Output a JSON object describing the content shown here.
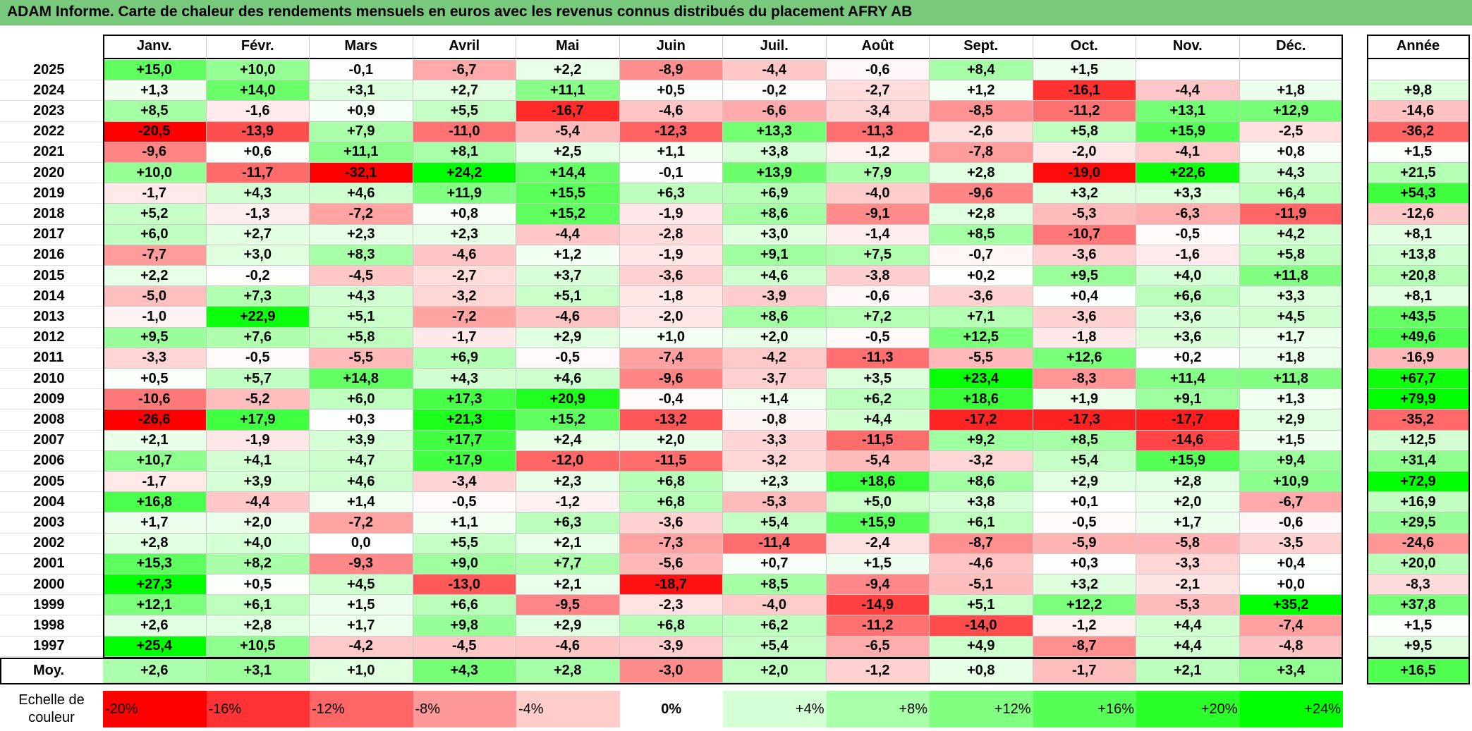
{
  "title": "ADAM Informe. Carte de chaleur des rendements mensuels en euros avec les revenus connus distribués du placement AFRY AB",
  "chart_data": {
    "type": "heatmap",
    "months": [
      "Janv.",
      "Févr.",
      "Mars",
      "Avril",
      "Mai",
      "Juin",
      "Juil.",
      "Août",
      "Sept.",
      "Oct.",
      "Nov.",
      "Déc."
    ],
    "year_header": "Année",
    "rows": [
      {
        "year": "2025",
        "values": [
          "+15,0",
          "+10,0",
          "-0,1",
          "-6,7",
          "+2,2",
          "-8,9",
          "-4,4",
          "-0,6",
          "+8,4",
          "+1,5",
          "",
          ""
        ],
        "annual": ""
      },
      {
        "year": "2024",
        "values": [
          "+1,3",
          "+14,0",
          "+3,1",
          "+2,7",
          "+11,1",
          "+0,5",
          "-0,2",
          "-2,7",
          "+1,2",
          "-16,1",
          "-4,4",
          "+1,8"
        ],
        "annual": "+9,8"
      },
      {
        "year": "2023",
        "values": [
          "+8,5",
          "-1,6",
          "+0,9",
          "+5,5",
          "-16,7",
          "-4,6",
          "-6,6",
          "-3,4",
          "-8,5",
          "-11,2",
          "+13,1",
          "+12,9"
        ],
        "annual": "-14,6"
      },
      {
        "year": "2022",
        "values": [
          "-20,5",
          "-13,9",
          "+7,9",
          "-11,0",
          "-5,4",
          "-12,3",
          "+13,3",
          "-11,3",
          "-2,6",
          "+5,8",
          "+15,9",
          "-2,5"
        ],
        "annual": "-36,2"
      },
      {
        "year": "2021",
        "values": [
          "-9,6",
          "+0,6",
          "+11,1",
          "+8,1",
          "+2,5",
          "+1,1",
          "+3,8",
          "-1,2",
          "-7,8",
          "-2,0",
          "-4,1",
          "+0,8"
        ],
        "annual": "+1,5"
      },
      {
        "year": "2020",
        "values": [
          "+10,0",
          "-11,7",
          "-32,1",
          "+24,2",
          "+14,4",
          "-0,1",
          "+13,9",
          "+7,9",
          "+2,8",
          "-19,0",
          "+22,6",
          "+4,3"
        ],
        "annual": "+21,5"
      },
      {
        "year": "2019",
        "values": [
          "-1,7",
          "+4,3",
          "+4,6",
          "+11,9",
          "+15,5",
          "+6,3",
          "+6,9",
          "-4,0",
          "-9,6",
          "+3,2",
          "+3,3",
          "+6,4"
        ],
        "annual": "+54,3"
      },
      {
        "year": "2018",
        "values": [
          "+5,2",
          "-1,3",
          "-7,2",
          "+0,8",
          "+15,2",
          "-1,9",
          "+8,6",
          "-9,1",
          "+2,8",
          "-5,3",
          "-6,3",
          "-11,9"
        ],
        "annual": "-12,6"
      },
      {
        "year": "2017",
        "values": [
          "+6,0",
          "+2,7",
          "+2,3",
          "+2,3",
          "-4,4",
          "-2,8",
          "+3,0",
          "-1,4",
          "+8,5",
          "-10,7",
          "-0,5",
          "+4,2"
        ],
        "annual": "+8,1"
      },
      {
        "year": "2016",
        "values": [
          "-7,7",
          "+3,0",
          "+8,3",
          "-4,6",
          "+1,2",
          "-1,9",
          "+9,1",
          "+7,5",
          "-0,7",
          "-3,6",
          "-1,6",
          "+5,8"
        ],
        "annual": "+13,8"
      },
      {
        "year": "2015",
        "values": [
          "+2,2",
          "-0,2",
          "-4,5",
          "-2,7",
          "+3,7",
          "-3,6",
          "+4,6",
          "-3,8",
          "+0,2",
          "+9,5",
          "+4,0",
          "+11,8"
        ],
        "annual": "+20,8"
      },
      {
        "year": "2014",
        "values": [
          "-5,0",
          "+7,3",
          "+4,3",
          "-3,2",
          "+5,1",
          "-1,8",
          "-3,9",
          "-0,6",
          "-3,6",
          "+0,4",
          "+6,6",
          "+3,3"
        ],
        "annual": "+8,1"
      },
      {
        "year": "2013",
        "values": [
          "-1,0",
          "+22,9",
          "+5,1",
          "-7,2",
          "-4,6",
          "-2,0",
          "+8,6",
          "+7,2",
          "+7,1",
          "-3,6",
          "+3,6",
          "+4,5"
        ],
        "annual": "+43,5"
      },
      {
        "year": "2012",
        "values": [
          "+9,5",
          "+7,6",
          "+5,8",
          "-1,7",
          "+2,9",
          "+1,0",
          "+2,0",
          "-0,5",
          "+12,5",
          "-1,8",
          "+3,6",
          "+1,7"
        ],
        "annual": "+49,6"
      },
      {
        "year": "2011",
        "values": [
          "-3,3",
          "-0,5",
          "-5,5",
          "+6,9",
          "-0,5",
          "-7,4",
          "-4,2",
          "-11,3",
          "-5,5",
          "+12,6",
          "+0,2",
          "+1,8"
        ],
        "annual": "-16,9"
      },
      {
        "year": "2010",
        "values": [
          "+0,5",
          "+5,7",
          "+14,8",
          "+4,3",
          "+4,6",
          "-9,6",
          "-3,7",
          "+3,5",
          "+23,4",
          "-8,3",
          "+11,4",
          "+11,8"
        ],
        "annual": "+67,7"
      },
      {
        "year": "2009",
        "values": [
          "-10,6",
          "-5,2",
          "+6,0",
          "+17,3",
          "+20,9",
          "-0,4",
          "+1,4",
          "+6,2",
          "+18,6",
          "+1,9",
          "+9,1",
          "+1,3"
        ],
        "annual": "+79,9"
      },
      {
        "year": "2008",
        "values": [
          "-26,6",
          "+17,9",
          "+0,3",
          "+21,3",
          "+15,2",
          "-13,2",
          "-0,8",
          "+4,4",
          "-17,2",
          "-17,3",
          "-17,7",
          "+2,9"
        ],
        "annual": "-35,2"
      },
      {
        "year": "2007",
        "values": [
          "+2,1",
          "-1,9",
          "+3,9",
          "+17,7",
          "+2,4",
          "+2,0",
          "-3,3",
          "-11,5",
          "+9,2",
          "+8,5",
          "-14,6",
          "+1,5"
        ],
        "annual": "+12,5"
      },
      {
        "year": "2006",
        "values": [
          "+10,7",
          "+4,1",
          "+4,7",
          "+17,9",
          "-12,0",
          "-11,5",
          "-3,2",
          "-5,4",
          "-3,2",
          "+5,4",
          "+15,9",
          "+9,4"
        ],
        "annual": "+31,4"
      },
      {
        "year": "2005",
        "values": [
          "-1,7",
          "+3,9",
          "+4,6",
          "-3,4",
          "+2,3",
          "+6,8",
          "+2,3",
          "+18,6",
          "+8,6",
          "+2,9",
          "+2,8",
          "+10,9"
        ],
        "annual": "+72,9"
      },
      {
        "year": "2004",
        "values": [
          "+16,8",
          "-4,4",
          "+1,4",
          "-0,5",
          "-1,2",
          "+6,8",
          "-5,3",
          "+5,0",
          "+3,8",
          "+0,1",
          "+2,0",
          "-6,7"
        ],
        "annual": "+16,9"
      },
      {
        "year": "2003",
        "values": [
          "+1,7",
          "+2,0",
          "-7,2",
          "+1,1",
          "+6,3",
          "-3,6",
          "+5,4",
          "+15,9",
          "+6,1",
          "-0,5",
          "+1,7",
          "-0,6"
        ],
        "annual": "+29,5"
      },
      {
        "year": "2002",
        "values": [
          "+2,8",
          "+4,0",
          "0,0",
          "+5,5",
          "+2,1",
          "-7,3",
          "-11,4",
          "-2,4",
          "-8,7",
          "-5,9",
          "-5,8",
          "-3,5"
        ],
        "annual": "-24,6"
      },
      {
        "year": "2001",
        "values": [
          "+15,3",
          "+8,2",
          "-9,3",
          "+9,0",
          "+7,7",
          "-5,6",
          "+0,7",
          "+1,5",
          "-4,6",
          "+0,3",
          "-3,3",
          "+0,4"
        ],
        "annual": "+20,0"
      },
      {
        "year": "2000",
        "values": [
          "+27,3",
          "+0,5",
          "+4,5",
          "-13,0",
          "+2,1",
          "-18,7",
          "+8,5",
          "-9,4",
          "-5,1",
          "+3,2",
          "-2,1",
          "+0,0"
        ],
        "annual": "-8,3"
      },
      {
        "year": "1999",
        "values": [
          "+12,1",
          "+6,1",
          "+1,5",
          "+6,6",
          "-9,5",
          "-2,3",
          "-4,0",
          "-14,9",
          "+5,1",
          "+12,2",
          "-5,3",
          "+35,2"
        ],
        "annual": "+37,8"
      },
      {
        "year": "1998",
        "values": [
          "+2,6",
          "+2,8",
          "+1,7",
          "+9,8",
          "+2,9",
          "+6,8",
          "+6,2",
          "-11,2",
          "-14,0",
          "-1,2",
          "+4,4",
          "-7,4"
        ],
        "annual": "+1,5"
      },
      {
        "year": "1997",
        "values": [
          "+25,4",
          "+10,5",
          "-4,2",
          "-4,5",
          "-4,6",
          "-3,9",
          "+5,4",
          "-6,5",
          "+4,9",
          "-8,7",
          "+4,4",
          "-4,8"
        ],
        "annual": "+9,5"
      }
    ],
    "average": {
      "label": "Moy.",
      "values": [
        "+2,6",
        "+3,1",
        "+1,0",
        "+4,3",
        "+2,8",
        "-3,0",
        "+2,0",
        "-1,2",
        "+0,8",
        "-1,7",
        "+2,1",
        "+3,4"
      ],
      "annual": "+16,5"
    },
    "scale": {
      "label_line1": "Echelle de",
      "label_line2": "couleur",
      "steps": [
        {
          "label": "-20%",
          "value": -20,
          "align": "left"
        },
        {
          "label": "-16%",
          "value": -16,
          "align": "left"
        },
        {
          "label": "-12%",
          "value": -12,
          "align": "left"
        },
        {
          "label": "-8%",
          "value": -8,
          "align": "left"
        },
        {
          "label": "-4%",
          "value": -4,
          "align": "left"
        },
        {
          "label": "0%",
          "value": 0,
          "align": "center"
        },
        {
          "label": "+4%",
          "value": 4,
          "align": "right"
        },
        {
          "label": "+8%",
          "value": 8,
          "align": "right"
        },
        {
          "label": "+12%",
          "value": 12,
          "align": "right"
        },
        {
          "label": "+16%",
          "value": 16,
          "align": "right"
        },
        {
          "label": "+20%",
          "value": 20,
          "align": "right"
        },
        {
          "label": "+24%",
          "value": 24,
          "align": "right"
        }
      ]
    },
    "colors": {
      "negative_max": "#ff0000",
      "neutral": "#ffffff",
      "positive_max": "#00ff00"
    }
  }
}
